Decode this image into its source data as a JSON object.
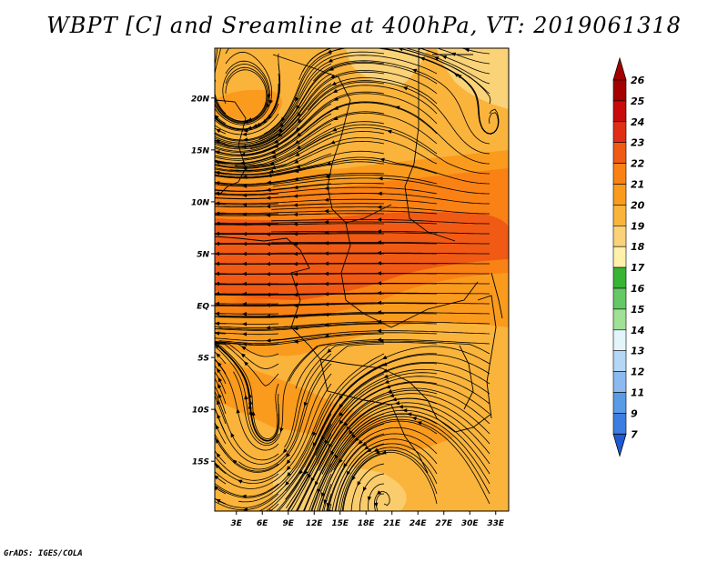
{
  "title": "WBPT [C] and Sreamline at 400hPa, VT: 2019061318",
  "credit": "GrADS: IGES/COLA",
  "map": {
    "lat_labels": [
      "20N",
      "15N",
      "10N",
      "5N",
      "EQ",
      "5S",
      "10S",
      "15S"
    ],
    "lat_values": [
      20,
      15,
      10,
      5,
      0,
      -5,
      -10,
      -15
    ],
    "lon_labels": [
      "3E",
      "6E",
      "9E",
      "12E",
      "15E",
      "18E",
      "21E",
      "24E",
      "27E",
      "30E",
      "33E"
    ],
    "lon_values": [
      3,
      6,
      9,
      12,
      15,
      18,
      21,
      24,
      27,
      30,
      33
    ],
    "lon_range": [
      0.5,
      34.5
    ],
    "lat_range": [
      -19.8,
      24.8
    ]
  },
  "colorbar": {
    "labels": [
      "26",
      "25",
      "24",
      "23",
      "22",
      "21",
      "20",
      "19",
      "18",
      "17",
      "16",
      "15",
      "14",
      "13",
      "12",
      "11",
      "9",
      "7"
    ],
    "colors": [
      "#a50000",
      "#c80a0a",
      "#e12d14",
      "#f05a14",
      "#fa8214",
      "#fa9b1e",
      "#fab43c",
      "#fad278",
      "#fff0aa",
      "#37b432",
      "#64c864",
      "#a0e196",
      "#e1f5fa",
      "#b4d7f5",
      "#8cb9f0",
      "#5a9be6",
      "#3c7de1",
      "#1e5ad2"
    ],
    "top_arrow_color": "#a50000",
    "bottom_arrow_color": "#1e5ad2"
  }
}
